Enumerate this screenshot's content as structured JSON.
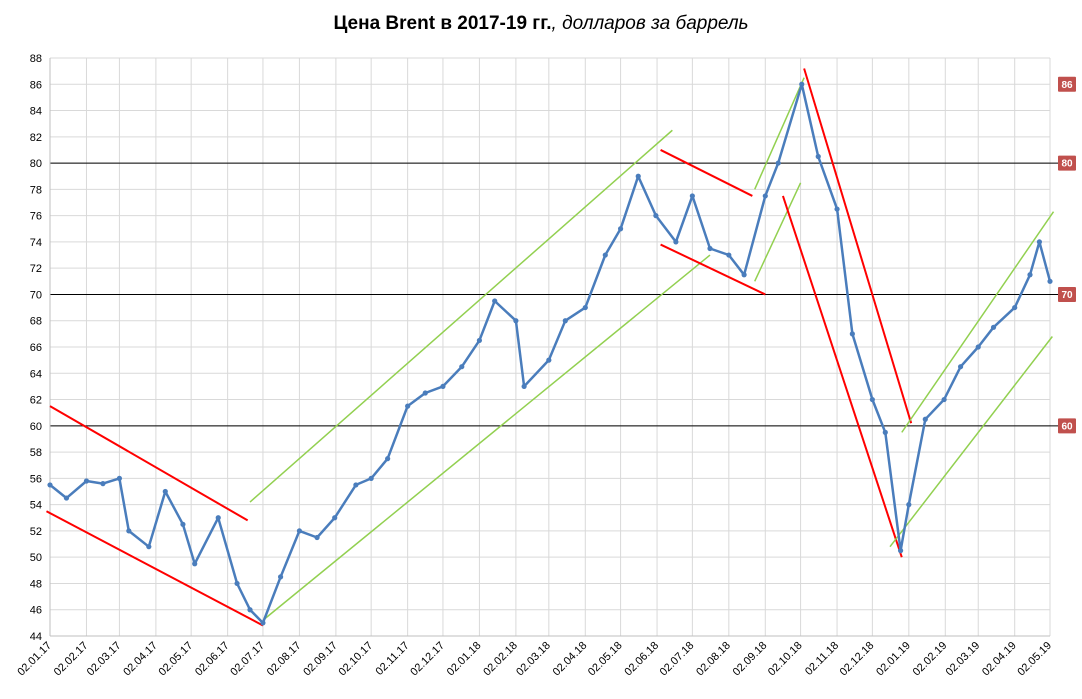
{
  "title": {
    "main": "Цена Brent в 2017-19 гг.",
    "sub": ", долларов за баррель"
  },
  "colors": {
    "series": "#4a7dbc",
    "channel_up": "#92d050",
    "channel_down": "#ff0000",
    "badge": "#c0504d",
    "grid": "#d9d9d9",
    "ref_line": "#000000"
  },
  "chart_data": {
    "type": "line",
    "title": "Цена Brent в 2017-19 гг., долларов за баррель",
    "xlabel": "",
    "ylabel": "",
    "ylim": [
      44,
      88
    ],
    "y_ticks": [
      44,
      46,
      48,
      50,
      52,
      54,
      56,
      58,
      60,
      62,
      64,
      66,
      68,
      70,
      72,
      74,
      76,
      78,
      80,
      82,
      84,
      86,
      88
    ],
    "x_tick_labels": [
      "02.01.17",
      "02.02.17",
      "02.03.17",
      "02.04.17",
      "02.05.17",
      "02.06.17",
      "02.07.17",
      "02.08.17",
      "02.09.17",
      "02.10.17",
      "02.11.17",
      "02.12.17",
      "02.01.18",
      "02.02.18",
      "02.03.18",
      "02.04.18",
      "02.05.18",
      "02.06.18",
      "02.07.18",
      "02.08.18",
      "02.09.18",
      "02.10.18",
      "02.11.18",
      "02.12.18",
      "02.01.19",
      "02.02.19",
      "02.03.19",
      "02.04.19",
      "02.05.19"
    ],
    "grid": true,
    "reference_lines": [
      80,
      70,
      60
    ],
    "reference_badges": [
      "86",
      "80",
      "70",
      "60"
    ],
    "series": [
      {
        "name": "",
        "x": [
          "02.01.17",
          "16.01.17",
          "02.02.17",
          "16.02.17",
          "02.03.17",
          "10.03.17",
          "27.03.17",
          "10.04.17",
          "25.04.17",
          "05.05.17",
          "25.05.17",
          "10.06.17",
          "21.06.17",
          "02.07.17",
          "17.07.17",
          "02.08.17",
          "17.08.17",
          "01.09.17",
          "19.09.17",
          "02.10.17",
          "16.10.17",
          "02.11.17",
          "17.11.17",
          "02.12.17",
          "18.12.17",
          "02.01.18",
          "15.01.18",
          "02.02.18",
          "09.02.18",
          "02.03.18",
          "16.03.18",
          "02.04.18",
          "19.04.18",
          "02.05.18",
          "17.05.18",
          "01.06.18",
          "18.06.18",
          "02.07.18",
          "17.07.18",
          "02.08.18",
          "15.08.18",
          "02.09.18",
          "13.09.18",
          "03.10.18",
          "17.10.18",
          "02.11.18",
          "15.11.18",
          "02.12.18",
          "13.12.18",
          "26.12.18",
          "02.01.19",
          "16.01.19",
          "01.02.19",
          "15.02.19",
          "02.03.19",
          "15.03.19",
          "02.04.19",
          "15.04.19",
          "23.04.19",
          "02.05.19"
        ],
        "values": [
          55.5,
          54.5,
          55.8,
          55.6,
          56.0,
          52.0,
          50.8,
          55.0,
          52.5,
          49.5,
          53.0,
          48.0,
          46.0,
          45.0,
          48.5,
          52.0,
          51.5,
          53.0,
          55.5,
          56.0,
          57.5,
          61.5,
          62.5,
          63.0,
          64.5,
          66.5,
          69.5,
          68.0,
          63.0,
          65.0,
          68.0,
          69.0,
          73.0,
          75.0,
          79.0,
          76.0,
          74.0,
          77.5,
          73.5,
          73.0,
          71.5,
          77.5,
          80.0,
          86.0,
          80.5,
          76.5,
          67.0,
          62.0,
          59.5,
          50.5,
          54.0,
          60.5,
          62.0,
          64.5,
          66.0,
          67.5,
          69.0,
          71.5,
          74.0,
          71.0
        ]
      }
    ],
    "trend_lines": [
      {
        "name": "",
        "color": "red",
        "from": {
          "x": "02.01.17",
          "y": 61.5
        },
        "to": {
          "x": "19.06.17",
          "y": 52.8
        }
      },
      {
        "name": "",
        "color": "red",
        "from": {
          "x": "30.12.16",
          "y": 53.5
        },
        "to": {
          "x": "02.07.17",
          "y": 44.8
        }
      },
      {
        "name": "",
        "color": "green",
        "from": {
          "x": "21.06.17",
          "y": 54.2
        },
        "to": {
          "x": "15.06.18",
          "y": 82.5
        }
      },
      {
        "name": "",
        "color": "green",
        "from": {
          "x": "02.07.17",
          "y": 45.2
        },
        "to": {
          "x": "17.07.18",
          "y": 73.0
        }
      },
      {
        "name": "",
        "color": "red",
        "from": {
          "x": "05.06.18",
          "y": 81.0
        },
        "to": {
          "x": "22.08.18",
          "y": 77.5
        }
      },
      {
        "name": "",
        "color": "red",
        "from": {
          "x": "05.06.18",
          "y": 73.8
        },
        "to": {
          "x": "02.09.18",
          "y": 70.0
        }
      },
      {
        "name": "",
        "color": "green",
        "from": {
          "x": "24.08.18",
          "y": 78.0
        },
        "to": {
          "x": "05.10.18",
          "y": 86.5
        }
      },
      {
        "name": "",
        "color": "green",
        "from": {
          "x": "24.08.18",
          "y": 71.0
        },
        "to": {
          "x": "02.10.18",
          "y": 78.5
        }
      },
      {
        "name": "",
        "color": "red",
        "from": {
          "x": "05.10.18",
          "y": 87.2
        },
        "to": {
          "x": "04.01.19",
          "y": 60.2
        }
      },
      {
        "name": "",
        "color": "red",
        "from": {
          "x": "17.09.18",
          "y": 77.5
        },
        "to": {
          "x": "27.12.18",
          "y": 50.0
        }
      },
      {
        "name": "",
        "color": "green",
        "from": {
          "x": "27.12.18",
          "y": 59.5
        },
        "to": {
          "x": "05.05.19",
          "y": 76.3
        }
      },
      {
        "name": "",
        "color": "green",
        "from": {
          "x": "17.12.18",
          "y": 50.8
        },
        "to": {
          "x": "04.05.19",
          "y": 66.8
        }
      }
    ]
  }
}
